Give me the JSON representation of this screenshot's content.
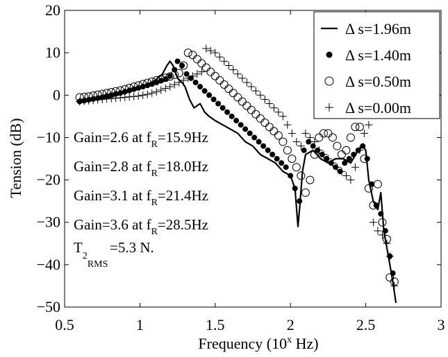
{
  "chart_data": {
    "type": "line",
    "xlabel": "Frequency (10",
    "xlabel_sup": "x",
    "xlabel_tail": " Hz)",
    "ylabel": "Tension (dB)",
    "xlim": [
      0.5,
      3
    ],
    "ylim": [
      -50,
      20
    ],
    "xticks": [
      0.5,
      1,
      1.5,
      2,
      2.5,
      3
    ],
    "yticks": [
      20,
      10,
      0,
      -10,
      -20,
      -30,
      -40,
      -50
    ],
    "xtick_labels": [
      "0.5",
      "1",
      "1.5",
      "2",
      "2.5",
      "3"
    ],
    "ytick_labels": [
      "20",
      "10",
      "0",
      "−10",
      "−20",
      "−30",
      "−40",
      "−50"
    ],
    "grid": false,
    "legend_position": "top-right",
    "series": [
      {
        "name": "Δ s=1.96m",
        "marker": "line",
        "x": [
          0.6,
          0.7,
          0.8,
          0.9,
          1.0,
          1.05,
          1.1,
          1.15,
          1.18,
          1.2,
          1.22,
          1.25,
          1.28,
          1.3,
          1.33,
          1.36,
          1.4,
          1.43,
          1.46,
          1.5,
          1.55,
          1.6,
          1.65,
          1.7,
          1.75,
          1.8,
          1.85,
          1.9,
          1.95,
          2.0,
          2.03,
          2.05,
          2.06,
          2.08,
          2.1,
          2.15,
          2.2,
          2.25,
          2.3,
          2.35,
          2.4,
          2.45,
          2.48,
          2.5,
          2.52,
          2.55,
          2.58,
          2.6,
          2.62,
          2.65,
          2.68,
          2.7
        ],
        "y": [
          -1.5,
          -1,
          -0.5,
          0.5,
          1.5,
          2.5,
          3.5,
          5,
          7,
          8,
          7,
          4,
          3,
          2,
          -1,
          -3,
          -2,
          -4,
          -5,
          -6,
          -7,
          -8,
          -9,
          -11,
          -12,
          -14,
          -15,
          -16,
          -18,
          -19,
          -22,
          -31,
          -27,
          -18,
          -14,
          -13,
          -15,
          -16,
          -15,
          -15,
          -16,
          -13,
          -12,
          -13,
          -20,
          -25,
          -27,
          -23,
          -32,
          -38,
          -44,
          -49
        ]
      },
      {
        "name": "Δ s=1.40m",
        "marker": "dot",
        "x": [
          0.6,
          0.63,
          0.66,
          0.69,
          0.72,
          0.75,
          0.78,
          0.81,
          0.84,
          0.87,
          0.9,
          0.93,
          0.96,
          0.99,
          1.02,
          1.05,
          1.08,
          1.11,
          1.14,
          1.17,
          1.2,
          1.23,
          1.25,
          1.28,
          1.31,
          1.34,
          1.37,
          1.4,
          1.43,
          1.46,
          1.49,
          1.52,
          1.55,
          1.58,
          1.61,
          1.64,
          1.67,
          1.7,
          1.73,
          1.76,
          1.79,
          1.82,
          1.85,
          1.88,
          1.91,
          1.94,
          1.97,
          2.0,
          2.03,
          2.06,
          2.09,
          2.12,
          2.15,
          2.18,
          2.21,
          2.24,
          2.27,
          2.3,
          2.33,
          2.36,
          2.39,
          2.42,
          2.45,
          2.48,
          2.51,
          2.54,
          2.57,
          2.6,
          2.63,
          2.66,
          2.68
        ],
        "y": [
          -1.5,
          -1.3,
          -1.1,
          -0.9,
          -0.7,
          -0.5,
          -0.2,
          0,
          0.3,
          0.5,
          0.8,
          1.1,
          1.4,
          1.7,
          2,
          2.3,
          2.6,
          3,
          3.4,
          3.8,
          4.5,
          6,
          8,
          7,
          5,
          4,
          3,
          2,
          1,
          0,
          -1,
          -2,
          -3,
          -4,
          -5,
          -6,
          -7,
          -8,
          -9,
          -10,
          -11,
          -12,
          -13,
          -14,
          -15,
          -16,
          -17,
          -19,
          -22,
          -25,
          -13,
          -11,
          -12,
          -13,
          -14,
          -15,
          -16,
          -17,
          -18,
          -16,
          -15,
          -14,
          -13,
          -12,
          -15,
          -21,
          -26,
          -28,
          -32,
          -38,
          -42
        ]
      },
      {
        "name": "Δ s=0.50m",
        "marker": "circle",
        "x": [
          0.6,
          0.63,
          0.66,
          0.69,
          0.72,
          0.75,
          0.78,
          0.81,
          0.84,
          0.87,
          0.9,
          0.93,
          0.96,
          0.99,
          1.02,
          1.05,
          1.08,
          1.11,
          1.14,
          1.17,
          1.2,
          1.23,
          1.26,
          1.29,
          1.32,
          1.35,
          1.38,
          1.41,
          1.44,
          1.47,
          1.5,
          1.53,
          1.56,
          1.59,
          1.62,
          1.65,
          1.68,
          1.71,
          1.74,
          1.77,
          1.8,
          1.83,
          1.86,
          1.89,
          1.92,
          1.95,
          1.98,
          2.01,
          2.04,
          2.07,
          2.1,
          2.13,
          2.16,
          2.19,
          2.22,
          2.25,
          2.28,
          2.31,
          2.34,
          2.37,
          2.4,
          2.43,
          2.46,
          2.49,
          2.52,
          2.55,
          2.58,
          2.61,
          2.64,
          2.66,
          2.69
        ],
        "y": [
          -0.5,
          -0.4,
          -0.3,
          -0.1,
          0.1,
          0.3,
          0.5,
          0.7,
          0.9,
          1.1,
          1.4,
          1.7,
          2,
          2.3,
          2.6,
          2.9,
          3.2,
          3.5,
          3.8,
          4.1,
          4.4,
          4.8,
          5.2,
          7,
          10,
          9.5,
          8.5,
          7.5,
          6.5,
          5.5,
          4.5,
          3.5,
          2.5,
          1.5,
          0.5,
          -0.5,
          -1.5,
          -2.5,
          -3.5,
          -4.5,
          -5.5,
          -6.5,
          -7.5,
          -8.5,
          -9.5,
          -11,
          -13,
          -15,
          -17,
          -19,
          -23,
          -20,
          -14,
          -10,
          -9,
          -9,
          -10,
          -12,
          -14,
          -13,
          -10,
          -7.5,
          -7.5,
          -15,
          -22,
          -26,
          -21,
          -30,
          -34,
          -43,
          -44
        ]
      },
      {
        "name": "Δ s=0.00m",
        "marker": "plus",
        "x": [
          0.6,
          0.63,
          0.66,
          0.69,
          0.72,
          0.75,
          0.78,
          0.81,
          0.84,
          0.87,
          0.9,
          0.93,
          0.96,
          0.99,
          1.02,
          1.05,
          1.08,
          1.11,
          1.14,
          1.17,
          1.2,
          1.23,
          1.26,
          1.29,
          1.32,
          1.35,
          1.38,
          1.41,
          1.44,
          1.47,
          1.5,
          1.53,
          1.56,
          1.59,
          1.62,
          1.65,
          1.68,
          1.71,
          1.74,
          1.77,
          1.8,
          1.83,
          1.86,
          1.89,
          1.92,
          1.95,
          1.98,
          2.01,
          2.04,
          2.07,
          2.1,
          2.13,
          2.16,
          2.19,
          2.22,
          2.25,
          2.28,
          2.31,
          2.34,
          2.37,
          2.4,
          2.43,
          2.46,
          2.49,
          2.52,
          2.55,
          2.58,
          2.61,
          2.64,
          2.66,
          2.69
        ],
        "y": [
          -1.5,
          -1.4,
          -1.3,
          -1.2,
          -1.1,
          -1,
          -0.9,
          -0.8,
          -0.7,
          -0.6,
          -0.5,
          -0.4,
          -0.3,
          -0.2,
          0,
          0.2,
          0.5,
          0.8,
          1.2,
          1.6,
          2,
          2.5,
          3,
          3.5,
          4,
          4.5,
          5,
          5.5,
          11,
          10.5,
          10,
          9,
          8,
          7,
          6,
          5,
          4,
          3,
          2,
          1,
          0,
          -1,
          -2,
          -3,
          -4,
          -5,
          -7,
          -9,
          -11,
          -12,
          -9,
          -10,
          -11,
          -13,
          -14,
          -15,
          -16,
          -17,
          -18,
          -19,
          -20,
          -17,
          -13,
          -9,
          -7,
          -30,
          -32,
          -33,
          -35,
          -38,
          -45
        ]
      }
    ],
    "annotations": [
      {
        "text": "Gain=2.6 at f",
        "sub": "R",
        "tail": "=15.9Hz"
      },
      {
        "text": "Gain=2.8 at f",
        "sub": "R",
        "tail": "=18.0Hz"
      },
      {
        "text": "Gain=3.1 at f",
        "sub": "R",
        "tail": "=21.4Hz"
      },
      {
        "text": "Gain=3.6 at f",
        "sub": "R",
        "tail": "=28.5Hz"
      }
    ],
    "rms_note": {
      "text": "T",
      "sub": "2",
      "subsub": "RMS",
      "tail": "=5.3 N."
    }
  }
}
